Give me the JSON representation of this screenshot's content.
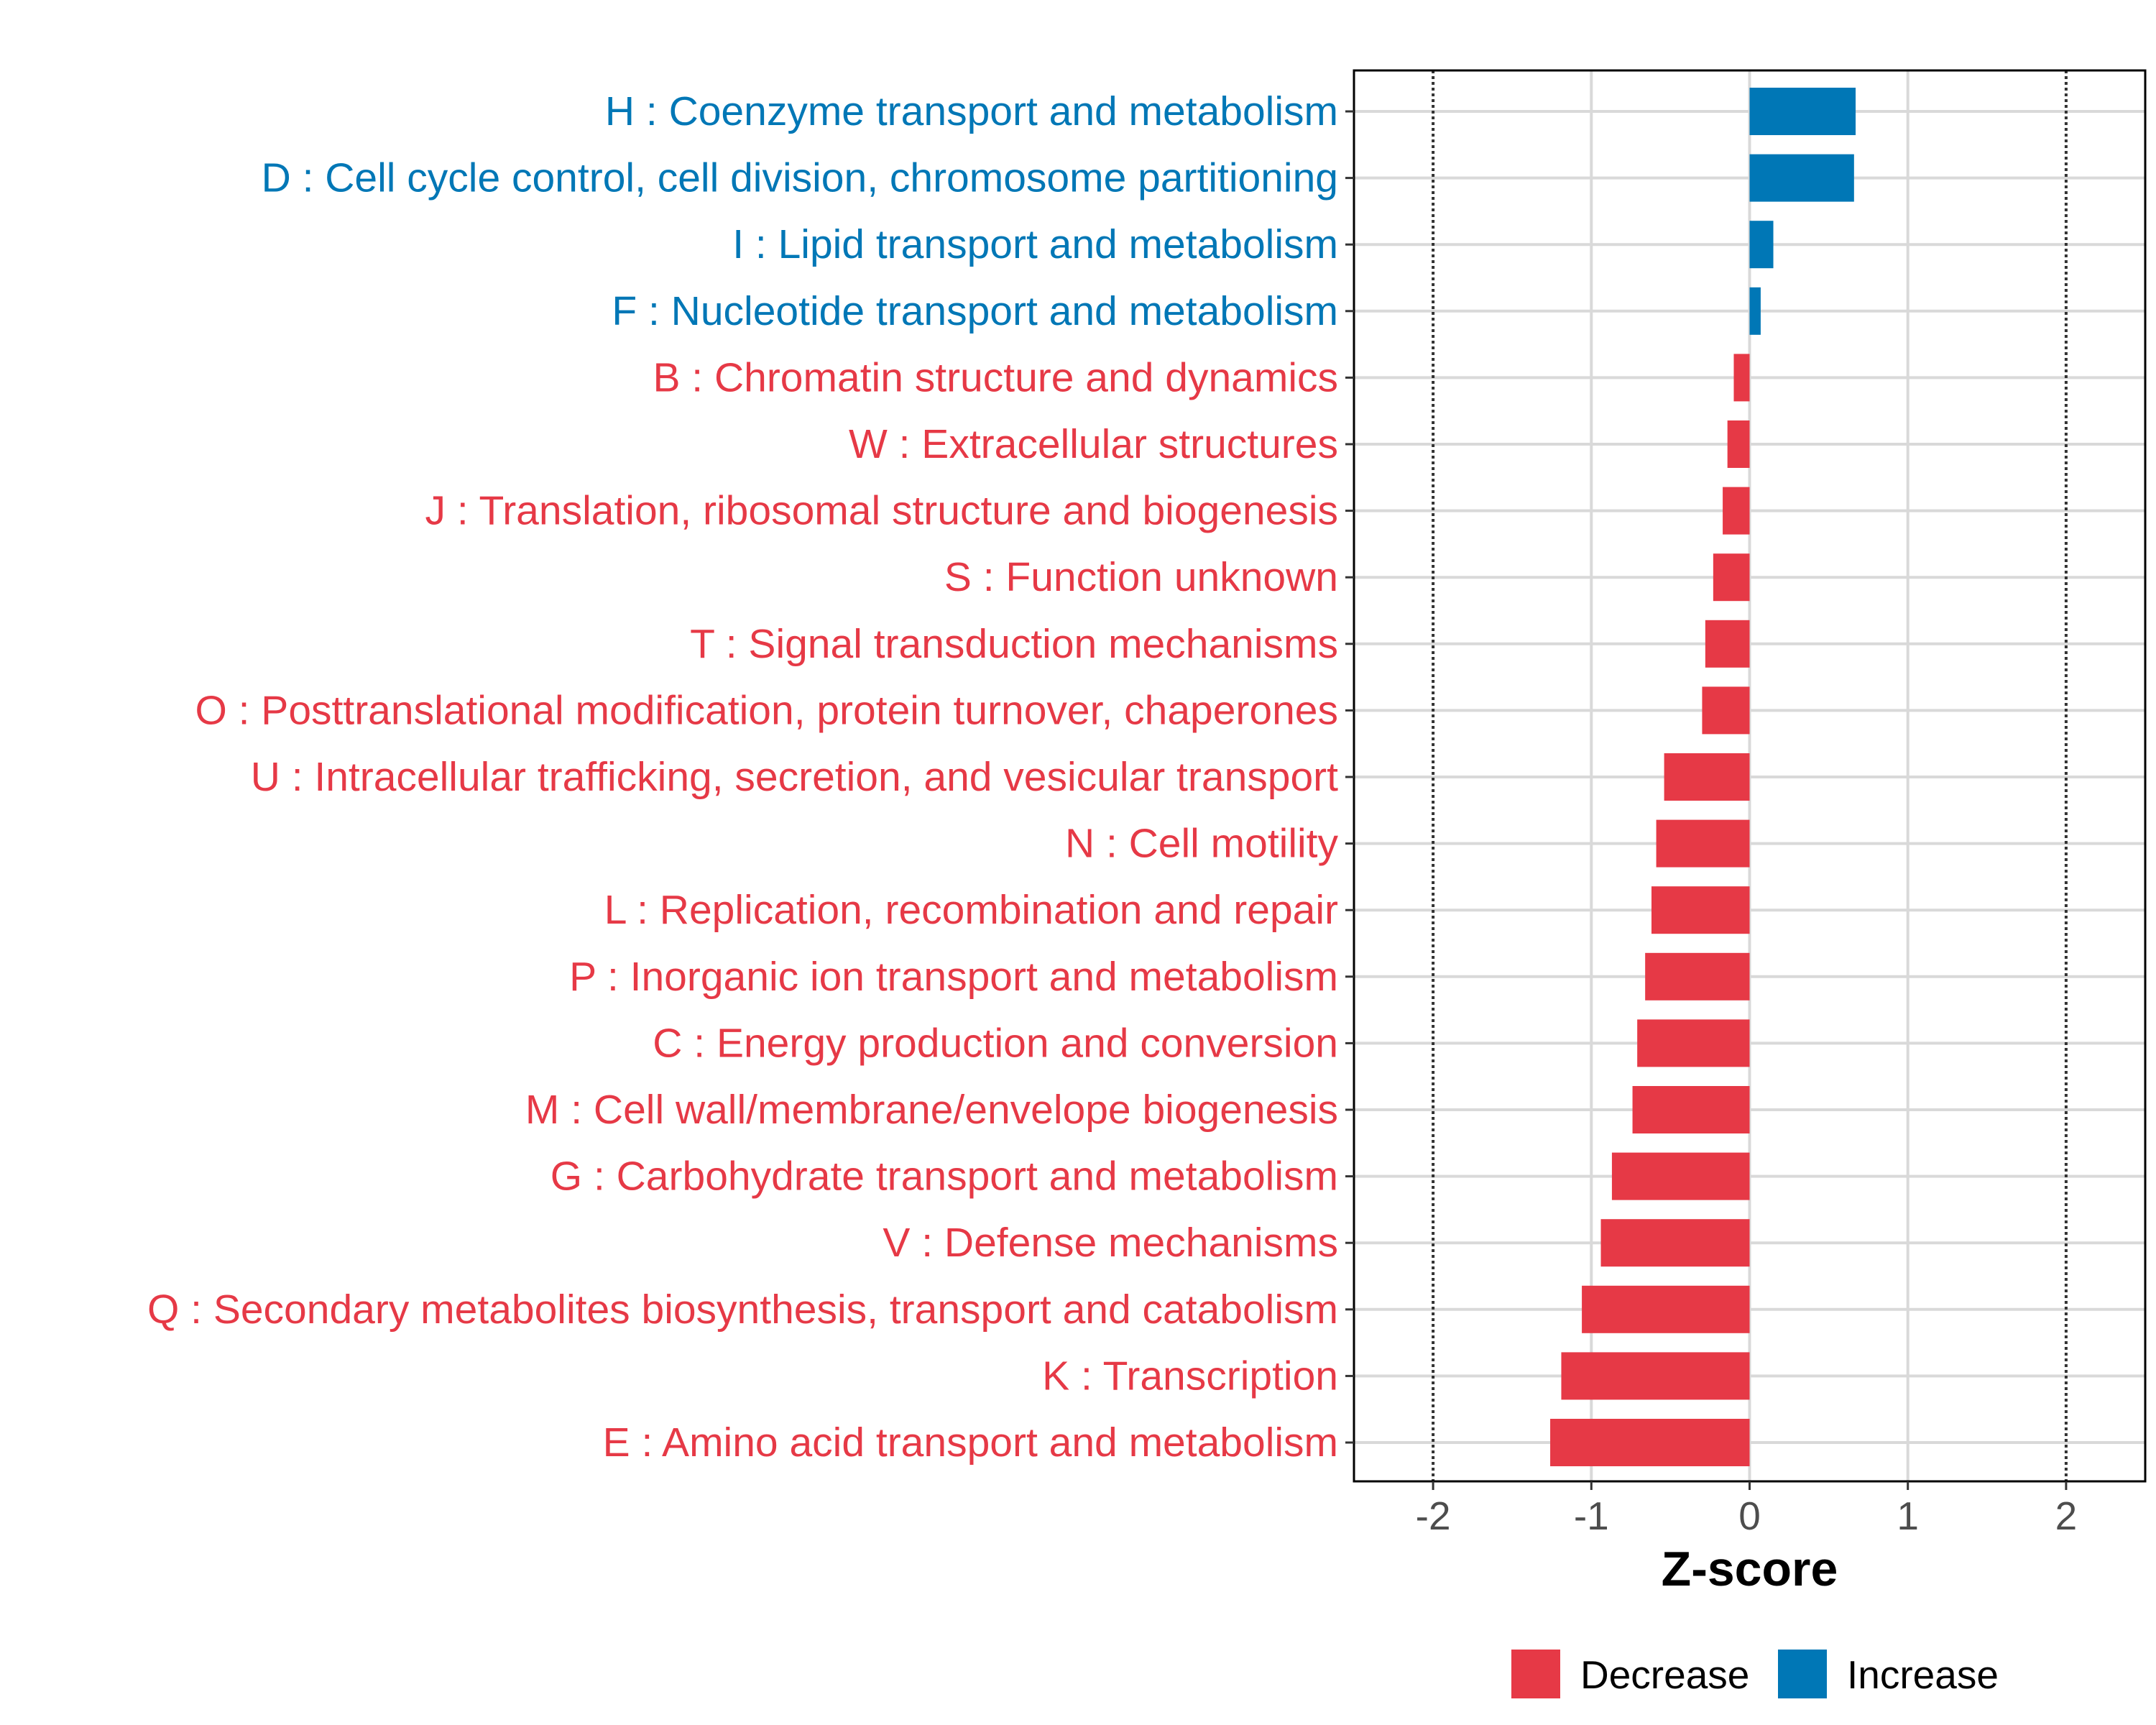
{
  "chart_data": {
    "type": "bar",
    "orientation": "horizontal",
    "xlabel": "Z-score",
    "xlim": [
      -2.5,
      2.5
    ],
    "xticks": [
      -2,
      -1,
      0,
      1,
      2
    ],
    "xtick_labels": [
      "-2",
      "-1",
      "0",
      "1",
      "2"
    ],
    "reference_lines": [
      -2,
      2
    ],
    "grid": true,
    "legend_position": "bottom",
    "colors": {
      "Decrease": "#E63946",
      "Increase": "#0077B6"
    },
    "legend": [
      "Decrease",
      "Increase"
    ],
    "categories": [
      "H : Coenzyme transport and metabolism",
      "D : Cell cycle control, cell division, chromosome partitioning",
      "I : Lipid transport and metabolism",
      "F : Nucleotide transport and metabolism",
      "B : Chromatin structure and dynamics",
      "W : Extracellular structures",
      "J : Translation, ribosomal structure and biogenesis",
      "S : Function unknown",
      "T : Signal transduction mechanisms",
      "O : Posttranslational modification, protein turnover, chaperones",
      "U : Intracellular trafficking, secretion, and vesicular transport",
      "N : Cell motility",
      "L : Replication, recombination and repair",
      "P : Inorganic ion transport and metabolism",
      "C : Energy production and conversion",
      "M : Cell wall/membrane/envelope biogenesis",
      "G : Carbohydrate transport and metabolism",
      "V : Defense mechanisms",
      "Q : Secondary metabolites biosynthesis, transport and catabolism",
      "K : Transcription",
      "E : Amino acid transport and metabolism"
    ],
    "values": [
      0.67,
      0.66,
      0.15,
      0.07,
      -0.1,
      -0.14,
      -0.17,
      -0.23,
      -0.28,
      -0.3,
      -0.54,
      -0.59,
      -0.62,
      -0.66,
      -0.71,
      -0.74,
      -0.87,
      -0.94,
      -1.06,
      -1.19,
      -1.26
    ],
    "groups": [
      "Increase",
      "Increase",
      "Increase",
      "Increase",
      "Decrease",
      "Decrease",
      "Decrease",
      "Decrease",
      "Decrease",
      "Decrease",
      "Decrease",
      "Decrease",
      "Decrease",
      "Decrease",
      "Decrease",
      "Decrease",
      "Decrease",
      "Decrease",
      "Decrease",
      "Decrease",
      "Decrease"
    ]
  }
}
